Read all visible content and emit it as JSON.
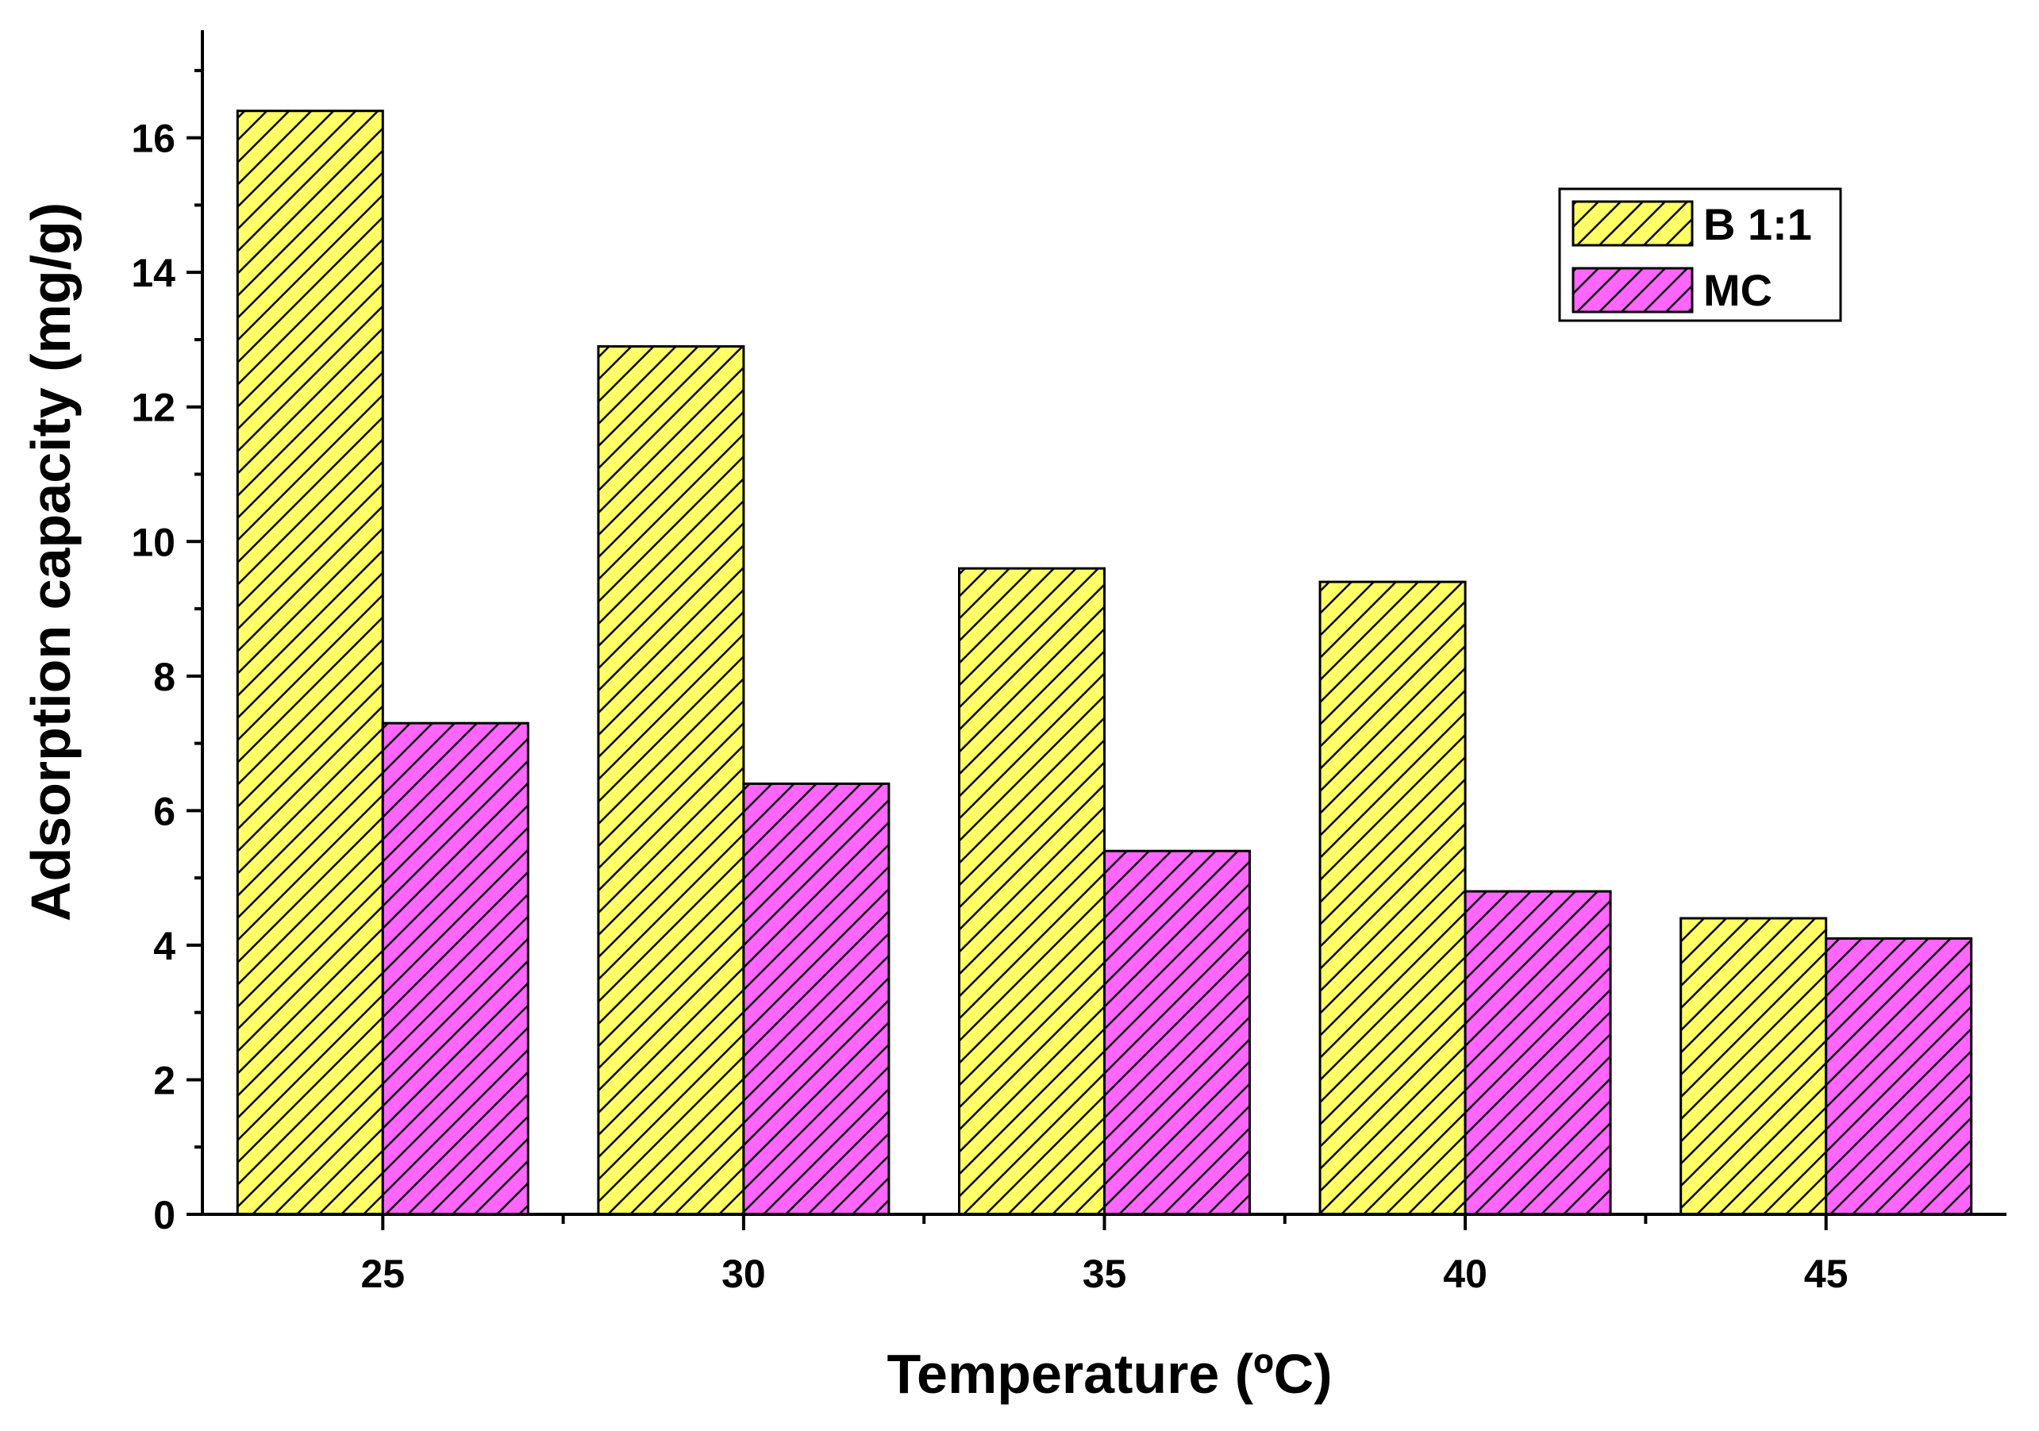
{
  "chart_data": {
    "type": "bar",
    "title": "",
    "xlabel": "Temperature (ºC)",
    "ylabel": "Adsorption capacity (mg/g)",
    "categories": [
      "25",
      "30",
      "35",
      "40",
      "45"
    ],
    "series": [
      {
        "name": "B 1:1",
        "values": [
          16.4,
          12.9,
          9.6,
          9.4,
          4.4
        ],
        "color": "#ffff66",
        "pattern": "diagonal-hatch"
      },
      {
        "name": "MC",
        "values": [
          7.3,
          6.4,
          5.4,
          4.8,
          4.1
        ],
        "color": "#ff66ff",
        "pattern": "diagonal-hatch"
      }
    ],
    "ylim": [
      0,
      17.6
    ],
    "yticks": [
      0,
      2,
      4,
      6,
      8,
      10,
      12,
      14,
      16
    ],
    "grid": false,
    "legend_position": "top-right"
  }
}
